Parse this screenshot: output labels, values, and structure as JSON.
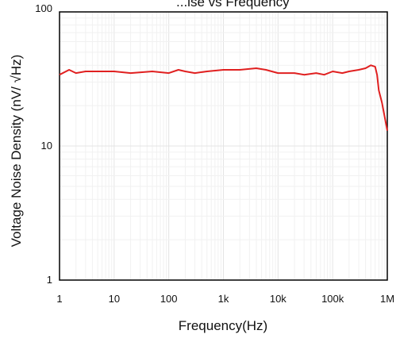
{
  "chart_data": {
    "type": "line",
    "title": "...ise vs Frequency",
    "xlabel": "Frequency(Hz)",
    "ylabel": "Voltage Noise Density (nV/ √Hz)",
    "x_scale": "log",
    "y_scale": "log",
    "xlim": [
      1,
      1000000
    ],
    "ylim": [
      1,
      100
    ],
    "x_ticks": [
      1,
      10,
      100,
      1000,
      10000,
      100000,
      1000000
    ],
    "x_tick_labels": [
      "1",
      "10",
      "100",
      "1k",
      "10k",
      "100k",
      "1M"
    ],
    "y_ticks": [
      1,
      10,
      100
    ],
    "y_tick_labels": [
      "1",
      "10",
      "100"
    ],
    "grid": true,
    "series": [
      {
        "color": "#e02020",
        "x": [
          1,
          1.5,
          2,
          3,
          5,
          10,
          20,
          50,
          100,
          150,
          200,
          300,
          500,
          1000,
          2000,
          4000,
          6000,
          10000,
          20000,
          30000,
          50000,
          70000,
          100000,
          150000,
          200000,
          300000,
          400000,
          500000,
          600000,
          650000,
          700000,
          800000,
          1000000
        ],
        "y": [
          34,
          37,
          35,
          36,
          36,
          36,
          35,
          36,
          35,
          37,
          36,
          35,
          36,
          37,
          37,
          38,
          37,
          35,
          35,
          34,
          35,
          34,
          36,
          35,
          36,
          37,
          38,
          40,
          39,
          34,
          26,
          21,
          13
        ]
      }
    ]
  }
}
